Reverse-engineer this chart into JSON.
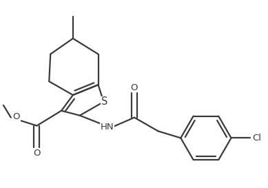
{
  "background": "#ffffff",
  "line_color": "#3a3a3a",
  "line_width": 1.6,
  "font_size": 9.5,
  "figsize": [
    3.89,
    2.73
  ],
  "dpi": 100,
  "xlim": [
    0,
    3.89
  ],
  "ylim": [
    0,
    2.73
  ]
}
